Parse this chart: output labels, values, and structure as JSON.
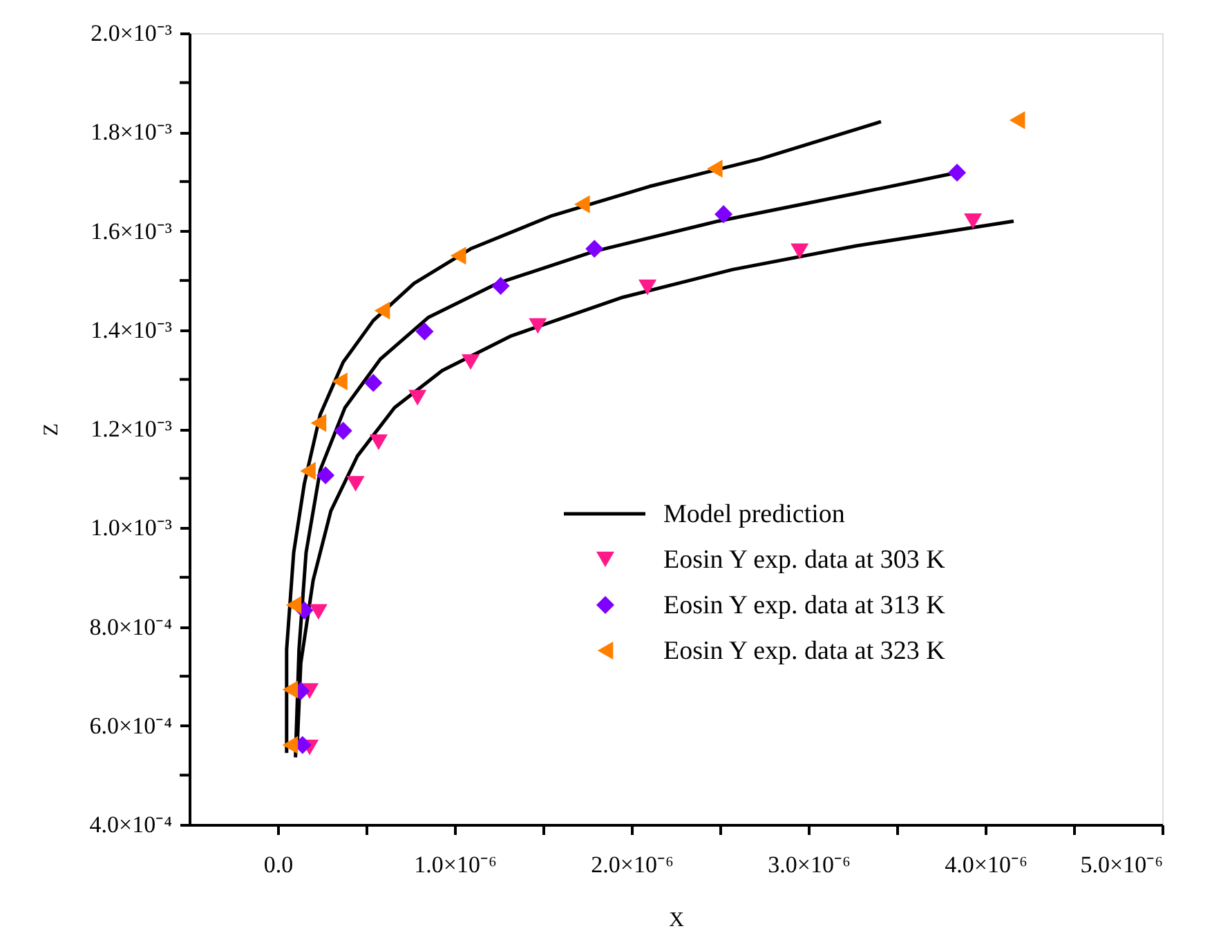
{
  "chart_data": {
    "type": "scatter",
    "xlabel": "X",
    "ylabel": "Z",
    "legend": "center",
    "grid": false,
    "xlim": [
      -5e-07,
      5e-06
    ],
    "xticks": [
      {
        "value": 0,
        "label": "0.0"
      },
      {
        "value": 5e-07,
        "label": null
      },
      {
        "value": 1e-06,
        "label": "1.0×10⁻⁶"
      },
      {
        "value": 1.5e-06,
        "label": null
      },
      {
        "value": 2e-06,
        "label": "2.0×10⁻⁶"
      },
      {
        "value": 2.5e-06,
        "label": null
      },
      {
        "value": 3e-06,
        "label": "3.0×10⁻⁶"
      },
      {
        "value": 3.5e-06,
        "label": null
      },
      {
        "value": 4e-06,
        "label": "4.0×10⁻⁶"
      },
      {
        "value": 4.5e-06,
        "label": null
      },
      {
        "value": 5e-06,
        "label": "5.0×10⁻⁶"
      }
    ],
    "ylim": [
      0.0004,
      0.002
    ],
    "yticks": [
      {
        "value": 0.0004,
        "label": "4.0×10⁻⁴"
      },
      {
        "value": 0.0005,
        "label": null
      },
      {
        "value": 0.0006,
        "label": "6.0×10⁻⁴"
      },
      {
        "value": 0.0007,
        "label": null
      },
      {
        "value": 0.0008,
        "label": "8.0×10⁻⁴"
      },
      {
        "value": 0.0009,
        "label": null
      },
      {
        "value": 0.001,
        "label": "1.0×10⁻³"
      },
      {
        "value": 0.0011,
        "label": null
      },
      {
        "value": 0.0012,
        "label": "1.2×10⁻³"
      },
      {
        "value": 0.0013,
        "label": null
      },
      {
        "value": 0.0014,
        "label": "1.4×10⁻³"
      },
      {
        "value": 0.0015,
        "label": null
      },
      {
        "value": 0.0016,
        "label": "1.6×10⁻³"
      },
      {
        "value": 0.0017,
        "label": null
      },
      {
        "value": 0.0018,
        "label": "1.8×10⁻³"
      },
      {
        "value": 0.0019,
        "label": null
      },
      {
        "value": 0.002,
        "label": "2.0×10⁻³"
      }
    ],
    "series": [
      {
        "name": "Model prediction",
        "type": "line",
        "color": "#000000",
        "line_style": "solid",
        "marker": "none",
        "x": [
          5e-08,
          5e-08,
          9e-08,
          1.5e-07,
          2.4e-07,
          3.7e-07,
          5.4e-07,
          7.7e-07,
          1.09e-06,
          1.55e-06,
          2.1e-06,
          2.73e-06,
          3.41e-06
        ],
        "values": [
          0.000545,
          0.000754,
          0.00095,
          0.001089,
          0.001229,
          0.001335,
          0.001419,
          0.001494,
          0.001564,
          0.001631,
          0.00169,
          0.001746,
          0.001821
        ]
      },
      {
        "type": "line",
        "color": "#000000",
        "line_style": "solid",
        "marker": "none",
        "x": [
          1e-07,
          1.2e-07,
          1.6e-07,
          2.4e-07,
          3.8e-07,
          5.8e-07,
          8.5e-07,
          1.24e-06,
          1.79e-06,
          2.49e-06,
          3.27e-06,
          3.84e-06
        ],
        "values": [
          0.000536,
          0.000754,
          0.00095,
          0.001117,
          0.001243,
          0.001341,
          0.001425,
          0.001494,
          0.001559,
          0.00162,
          0.001676,
          0.001718
        ]
      },
      {
        "type": "line",
        "color": "#000000",
        "line_style": "solid",
        "marker": "none",
        "x": [
          1.1e-07,
          1.3e-07,
          2e-07,
          3e-07,
          4.5e-07,
          6.6e-07,
          9.3e-07,
          1.32e-06,
          1.95e-06,
          2.57e-06,
          3.27e-06,
          4.16e-06
        ],
        "values": [
          0.000559,
          0.000726,
          0.000894,
          0.001034,
          0.001145,
          0.001243,
          0.001318,
          0.001388,
          0.001466,
          0.001522,
          0.00157,
          0.00162
        ]
      },
      {
        "name": "Eosin Y exp. data at 303 K",
        "color": "#ff1a8c",
        "marker": "triangle-down",
        "x": [
          1.8e-07,
          1.8e-07,
          2.3e-07,
          4.4e-07,
          5.7e-07,
          7.9e-07,
          1.09e-06,
          1.47e-06,
          2.09e-06,
          2.95e-06,
          3.93e-06
        ],
        "values": [
          0.000556,
          0.00067,
          0.00083,
          0.001089,
          0.001173,
          0.001263,
          0.001335,
          0.001408,
          0.001486,
          0.001559,
          0.00162
        ]
      },
      {
        "name": "Eosin Y exp. data at 313 K",
        "color": "#8000ff",
        "marker": "diamond",
        "x": [
          1.4e-07,
          1.3e-07,
          1.5e-07,
          2.7e-07,
          3.7e-07,
          5.4e-07,
          8.3e-07,
          1.26e-06,
          1.79e-06,
          2.52e-06,
          3.84e-06
        ],
        "values": [
          0.000561,
          0.00067,
          0.000833,
          0.001106,
          0.001196,
          0.001293,
          0.001397,
          0.001489,
          0.001564,
          0.001634,
          0.001718
        ]
      },
      {
        "name": "Eosin Y exp. data at 323 K",
        "color": "#ff8000",
        "marker": "triangle-left",
        "x": [
          7e-08,
          7e-08,
          9e-08,
          1.7e-07,
          2.3e-07,
          3.5e-07,
          5.9e-07,
          1.02e-06,
          1.72e-06,
          2.47e-06,
          4.18e-06
        ],
        "values": [
          0.000561,
          0.000673,
          0.000844,
          0.001115,
          0.001212,
          0.001296,
          0.001439,
          0.00155,
          0.001654,
          0.001726,
          0.001824
        ]
      }
    ]
  }
}
